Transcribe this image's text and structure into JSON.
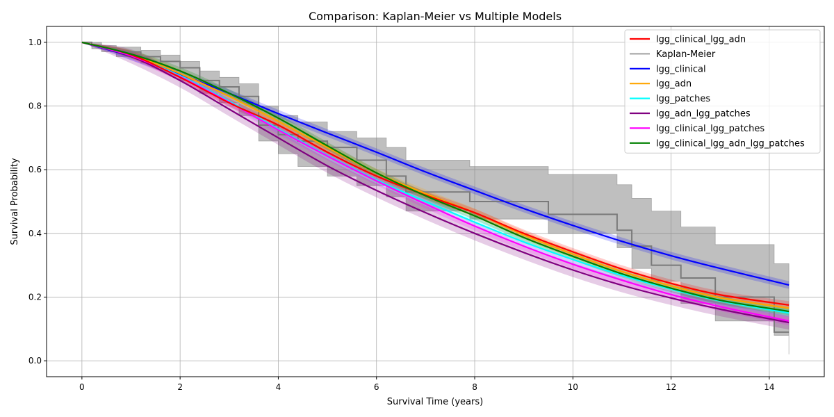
{
  "chart_data": {
    "type": "line",
    "title": "Comparison: Kaplan-Meier vs Multiple Models",
    "xlabel": "Survival Time (years)",
    "ylabel": "Survival Probability",
    "xlim": [
      -0.72,
      15.12
    ],
    "ylim": [
      -0.05,
      1.05
    ],
    "xticks": [
      0,
      2,
      4,
      6,
      8,
      10,
      12,
      14
    ],
    "yticks": [
      0.0,
      0.2,
      0.4,
      0.6,
      0.8,
      1.0
    ],
    "xtick_labels": [
      "0",
      "2",
      "4",
      "6",
      "8",
      "10",
      "12",
      "14"
    ],
    "ytick_labels": [
      "0.0",
      "0.2",
      "0.4",
      "0.6",
      "0.8",
      "1.0"
    ],
    "grid": true,
    "legend_position": "top-right",
    "series": [
      {
        "name": "lgg_clinical_lgg_adn",
        "color": "#ff0000",
        "x": [
          0,
          1,
          2,
          3,
          4,
          5,
          6,
          7,
          8,
          9,
          10,
          11,
          12,
          13,
          14.4
        ],
        "y": [
          1.0,
          0.961,
          0.89,
          0.81,
          0.74,
          0.655,
          0.58,
          0.52,
          0.465,
          0.4,
          0.342,
          0.288,
          0.243,
          0.207,
          0.175
        ],
        "band": 0.012
      },
      {
        "name": "Kaplan-Meier",
        "color": "#aaaaaa",
        "type": "step",
        "x": [
          0,
          0.2,
          0.4,
          0.7,
          1.2,
          1.6,
          2.0,
          2.4,
          2.8,
          3.2,
          3.6,
          4.0,
          4.4,
          5.0,
          5.6,
          6.2,
          6.6,
          7.9,
          9.5,
          10.9,
          11.2,
          11.6,
          12.2,
          12.9,
          14.1,
          14.4
        ],
        "y": [
          1.0,
          0.99,
          0.98,
          0.97,
          0.955,
          0.94,
          0.92,
          0.88,
          0.86,
          0.83,
          0.74,
          0.71,
          0.69,
          0.67,
          0.63,
          0.58,
          0.53,
          0.5,
          0.46,
          0.41,
          0.36,
          0.3,
          0.26,
          0.2,
          0.09,
          0.09
        ],
        "upper": [
          1.0,
          1.0,
          0.99,
          0.985,
          0.975,
          0.96,
          0.94,
          0.91,
          0.89,
          0.87,
          0.8,
          0.77,
          0.75,
          0.72,
          0.7,
          0.67,
          0.63,
          0.61,
          0.585,
          0.553,
          0.51,
          0.47,
          0.42,
          0.365,
          0.305,
          0.305
        ],
        "lower": [
          1.0,
          0.98,
          0.97,
          0.955,
          0.935,
          0.91,
          0.88,
          0.84,
          0.81,
          0.77,
          0.69,
          0.65,
          0.61,
          0.58,
          0.55,
          0.515,
          0.47,
          0.445,
          0.4,
          0.355,
          0.29,
          0.25,
          0.18,
          0.125,
          0.08,
          0.02
        ]
      },
      {
        "name": "lgg_clinical",
        "color": "#0000ff",
        "x": [
          0,
          1,
          2,
          3,
          4,
          5,
          6,
          7,
          8,
          9,
          10,
          11,
          12,
          13,
          14.4
        ],
        "y": [
          1.0,
          0.956,
          0.9,
          0.84,
          0.776,
          0.715,
          0.655,
          0.593,
          0.535,
          0.478,
          0.425,
          0.375,
          0.33,
          0.29,
          0.238
        ],
        "band": 0.012
      },
      {
        "name": "lgg_adn",
        "color": "#ffa500",
        "x": [
          0,
          1,
          2,
          3,
          4,
          5,
          6,
          7,
          8,
          9,
          10,
          11,
          12,
          13,
          14.4
        ],
        "y": [
          1.0,
          0.962,
          0.902,
          0.83,
          0.752,
          0.67,
          0.59,
          0.525,
          0.465,
          0.395,
          0.335,
          0.28,
          0.235,
          0.198,
          0.165
        ],
        "band": 0.013
      },
      {
        "name": "lgg_patches",
        "color": "#00ffff",
        "x": [
          0,
          1,
          2,
          3,
          4,
          5,
          6,
          7,
          8,
          9,
          10,
          11,
          12,
          13,
          14.4
        ],
        "y": [
          1.0,
          0.958,
          0.895,
          0.815,
          0.728,
          0.645,
          0.568,
          0.5,
          0.435,
          0.373,
          0.318,
          0.268,
          0.225,
          0.188,
          0.15
        ],
        "band": 0.013
      },
      {
        "name": "lgg_adn_lgg_patches",
        "color": "#800080",
        "x": [
          0,
          1,
          2,
          3,
          4,
          5,
          6,
          7,
          8,
          9,
          10,
          11,
          12,
          13,
          14.4
        ],
        "y": [
          1.0,
          0.956,
          0.88,
          0.79,
          0.7,
          0.612,
          0.535,
          0.465,
          0.4,
          0.34,
          0.285,
          0.237,
          0.197,
          0.162,
          0.12
        ],
        "band": 0.022
      },
      {
        "name": "lgg_clinical_lgg_patches",
        "color": "#ff00ff",
        "x": [
          0,
          1,
          2,
          3,
          4,
          5,
          6,
          7,
          8,
          9,
          10,
          11,
          12,
          13,
          14.4
        ],
        "y": [
          1.0,
          0.958,
          0.892,
          0.812,
          0.725,
          0.643,
          0.565,
          0.492,
          0.423,
          0.36,
          0.303,
          0.253,
          0.208,
          0.17,
          0.125
        ],
        "band": 0.014
      },
      {
        "name": "lgg_clinical_lgg_adn_lgg_patches",
        "color": "#008000",
        "x": [
          0,
          1,
          2,
          3,
          4,
          5,
          6,
          7,
          8,
          9,
          10,
          11,
          12,
          13,
          14.4
        ],
        "y": [
          1.0,
          0.963,
          0.91,
          0.84,
          0.762,
          0.675,
          0.59,
          0.518,
          0.455,
          0.387,
          0.328,
          0.273,
          0.228,
          0.19,
          0.155
        ],
        "band": 0.012
      }
    ]
  }
}
